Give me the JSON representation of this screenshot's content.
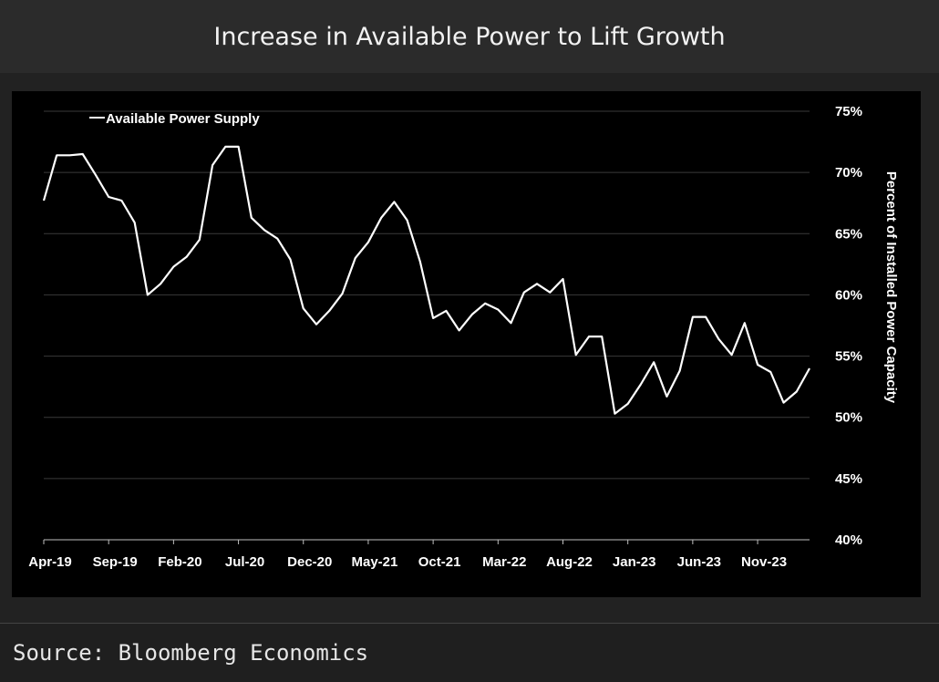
{
  "header": {
    "title": "Increase in Available Power to Lift Growth"
  },
  "footer": {
    "source": "Source: Bloomberg Economics"
  },
  "chart_data": {
    "type": "line",
    "title": "Increase in Available Power to Lift Growth",
    "ylabel": "Percent of Installed Power Capacity",
    "xlabel": "",
    "ylim": [
      40,
      75
    ],
    "y_ticks": [
      "40%",
      "45%",
      "50%",
      "55%",
      "60%",
      "65%",
      "70%",
      "75%"
    ],
    "x_tick_labels": [
      "Apr-19",
      "Sep-19",
      "Feb-20",
      "Jul-20",
      "Dec-20",
      "May-21",
      "Oct-21",
      "Mar-22",
      "Aug-22",
      "Jan-23",
      "Jun-23",
      "Nov-23"
    ],
    "x_tick_every_months": 5,
    "grid": "horizontal",
    "legend": "top-left",
    "line_color": "#ffffff",
    "series": [
      {
        "name": "Available Power Supply",
        "start": "Apr-19",
        "values": [
          67.7,
          71.4,
          71.4,
          71.5,
          69.8,
          68.0,
          67.7,
          65.9,
          60.0,
          60.9,
          62.3,
          63.1,
          64.5,
          70.6,
          72.1,
          72.1,
          66.3,
          65.3,
          64.6,
          62.9,
          58.9,
          57.6,
          58.7,
          60.1,
          63.0,
          64.3,
          66.3,
          67.6,
          66.1,
          62.7,
          58.1,
          58.7,
          57.1,
          58.4,
          59.3,
          58.8,
          57.7,
          60.2,
          60.9,
          60.2,
          61.3,
          55.1,
          56.6,
          56.6,
          50.3,
          51.1,
          52.7,
          54.5,
          51.7,
          53.8,
          58.2,
          58.2,
          56.4,
          55.1,
          57.7,
          54.3,
          53.7,
          51.2,
          52.1,
          54.0
        ]
      }
    ]
  }
}
